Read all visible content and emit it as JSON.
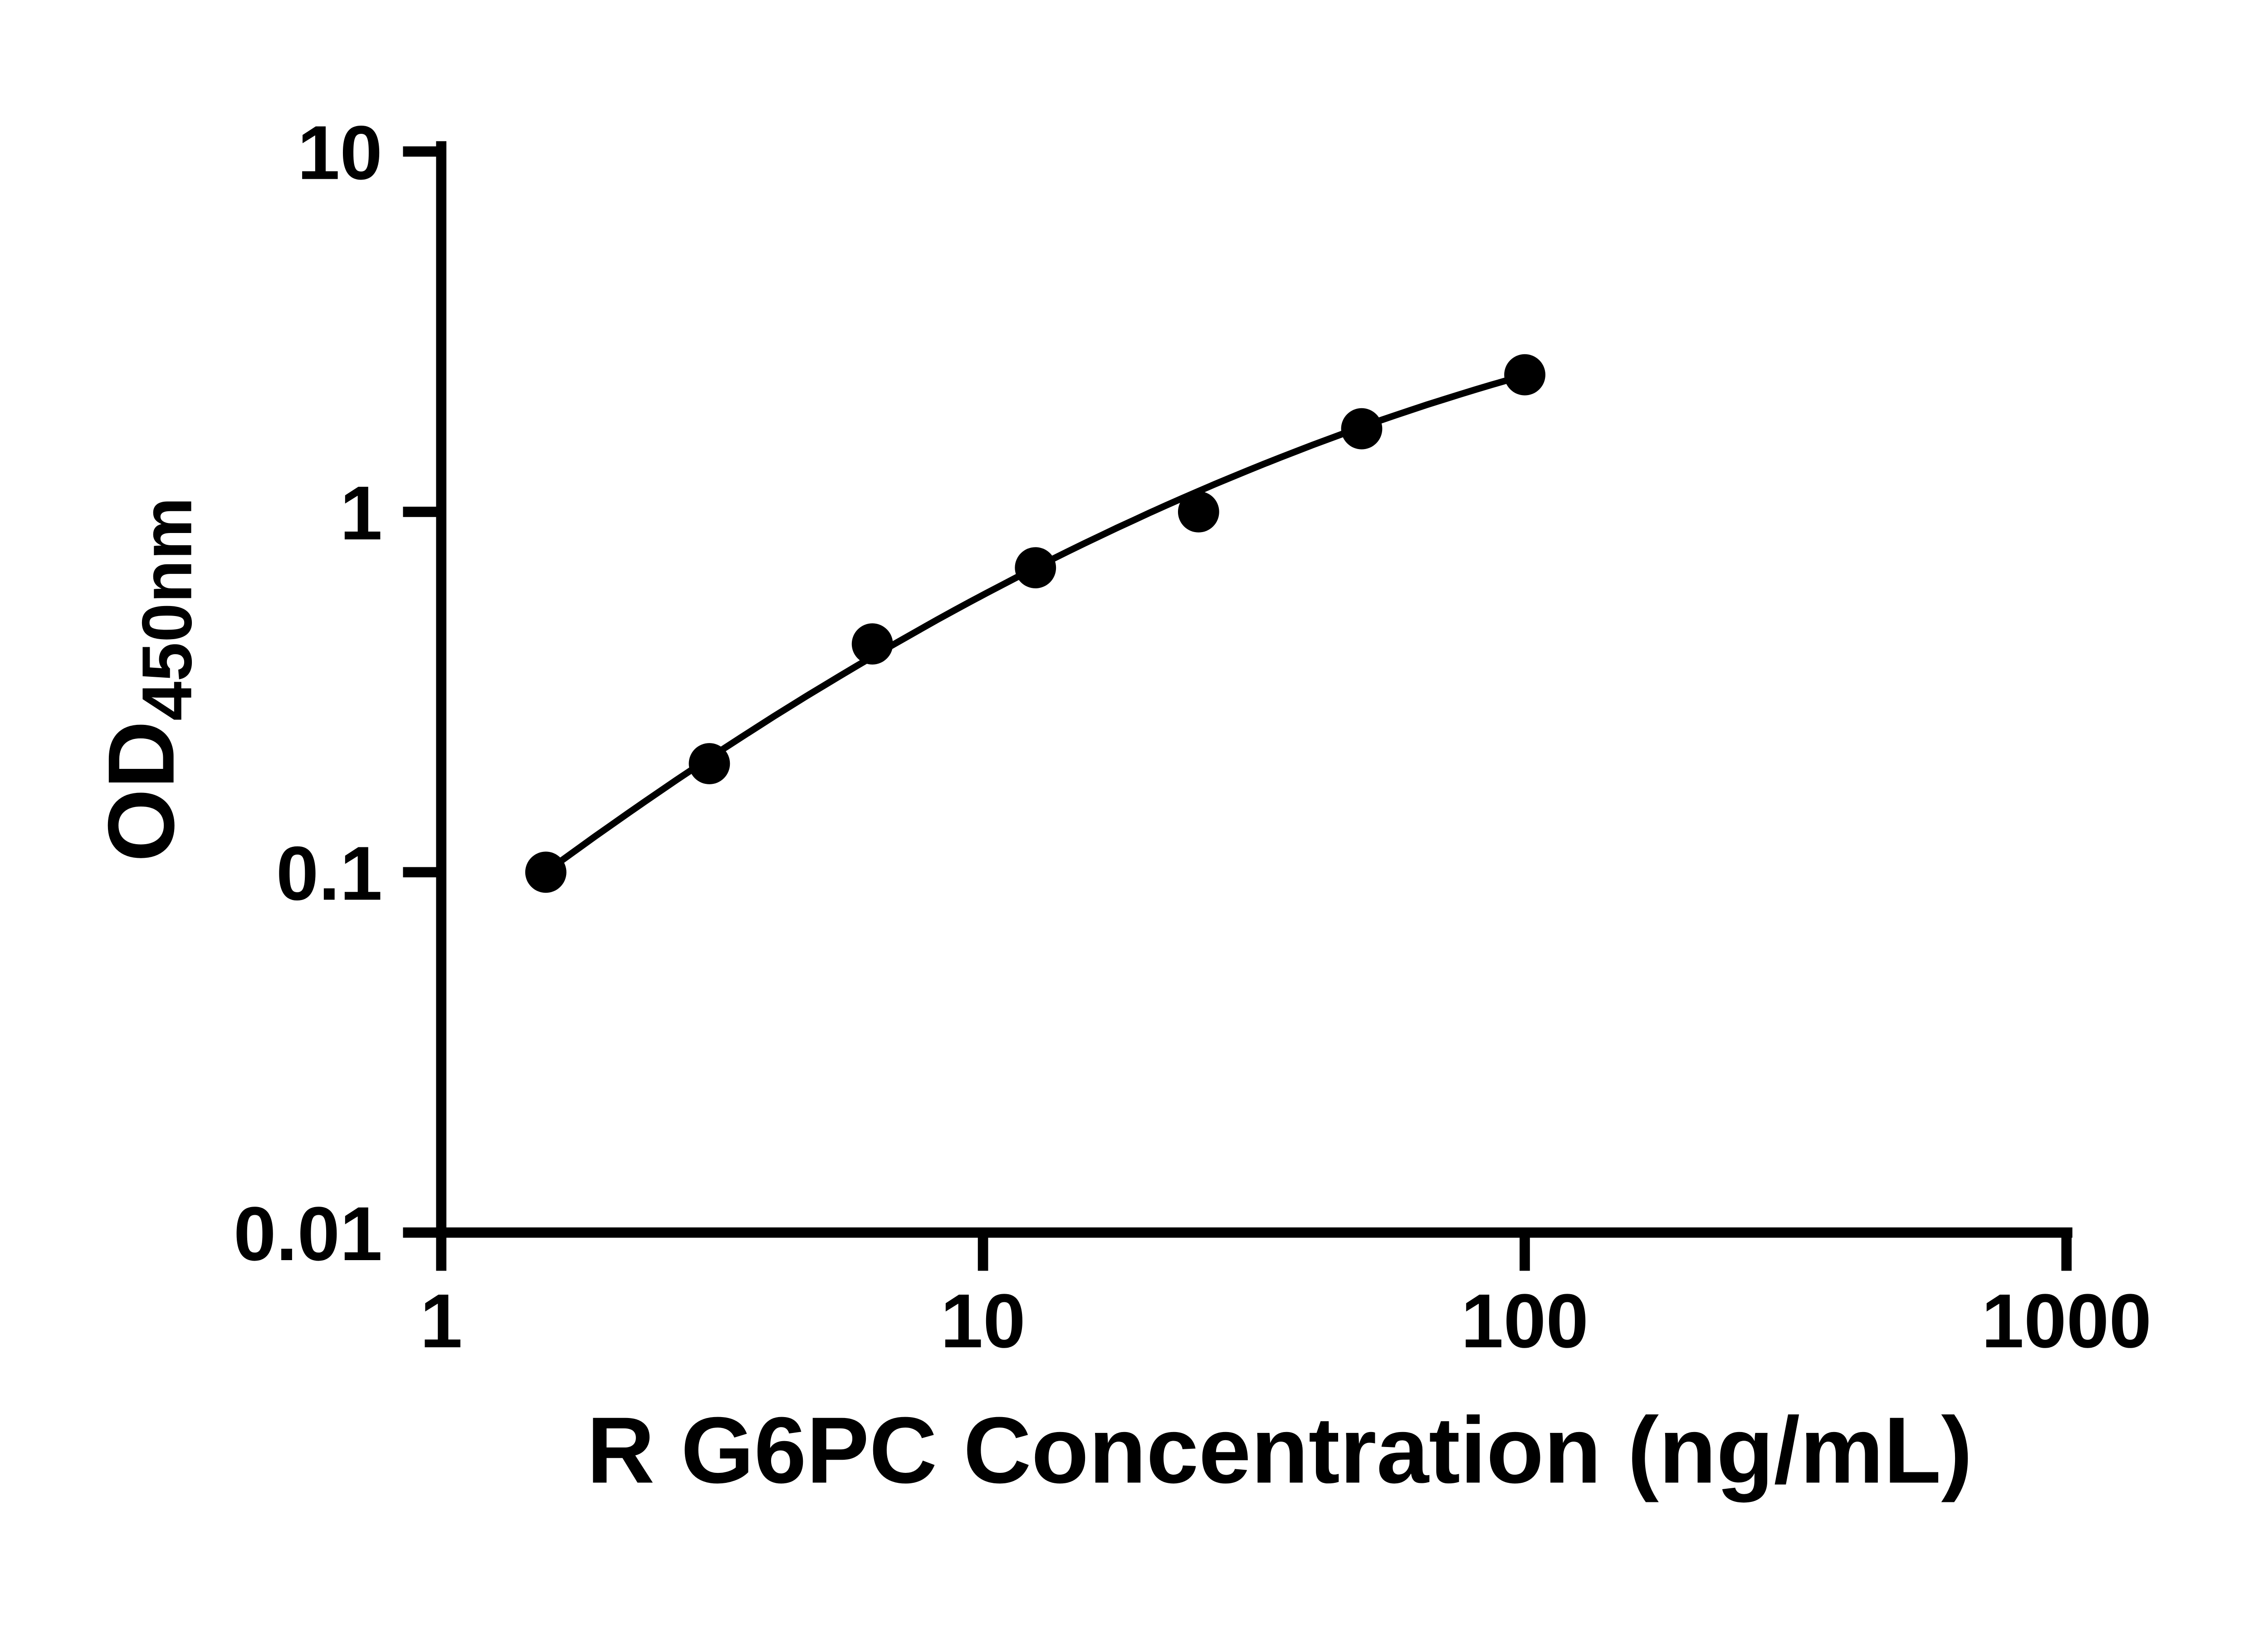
{
  "chart": {
    "xlabel": "R G6PC Concentration (ng/mL)",
    "ylabel_main": "OD",
    "ylabel_sub": "450nm"
  },
  "chart_data": {
    "type": "scatter",
    "title": "",
    "xlabel": "R G6PC Concentration (ng/mL)",
    "ylabel": "OD450nm",
    "x_scale": "log",
    "y_scale": "log",
    "xlim": [
      1,
      1000
    ],
    "ylim": [
      0.01,
      10
    ],
    "x_ticks": [
      1,
      10,
      100,
      1000
    ],
    "x_tick_labels": [
      "1",
      "10",
      "100",
      "1000"
    ],
    "y_ticks": [
      10,
      1,
      0.1,
      0.01
    ],
    "y_tick_labels": [
      "10",
      "1",
      "0.1",
      "0.01"
    ],
    "x": [
      1.56,
      3.125,
      6.25,
      12.5,
      25,
      50,
      100
    ],
    "y": [
      0.1,
      0.2,
      0.43,
      0.7,
      1.0,
      1.7,
      2.4
    ],
    "grid": false,
    "legend": null,
    "marker_color": "#000000",
    "line_color": "#000000",
    "background": "#ffffff",
    "trend_fit": {
      "type": "quadratic_loglog",
      "a": -1.2206,
      "b": 1.18,
      "c": -0.1901,
      "x_range": [
        1.56,
        100
      ]
    }
  }
}
